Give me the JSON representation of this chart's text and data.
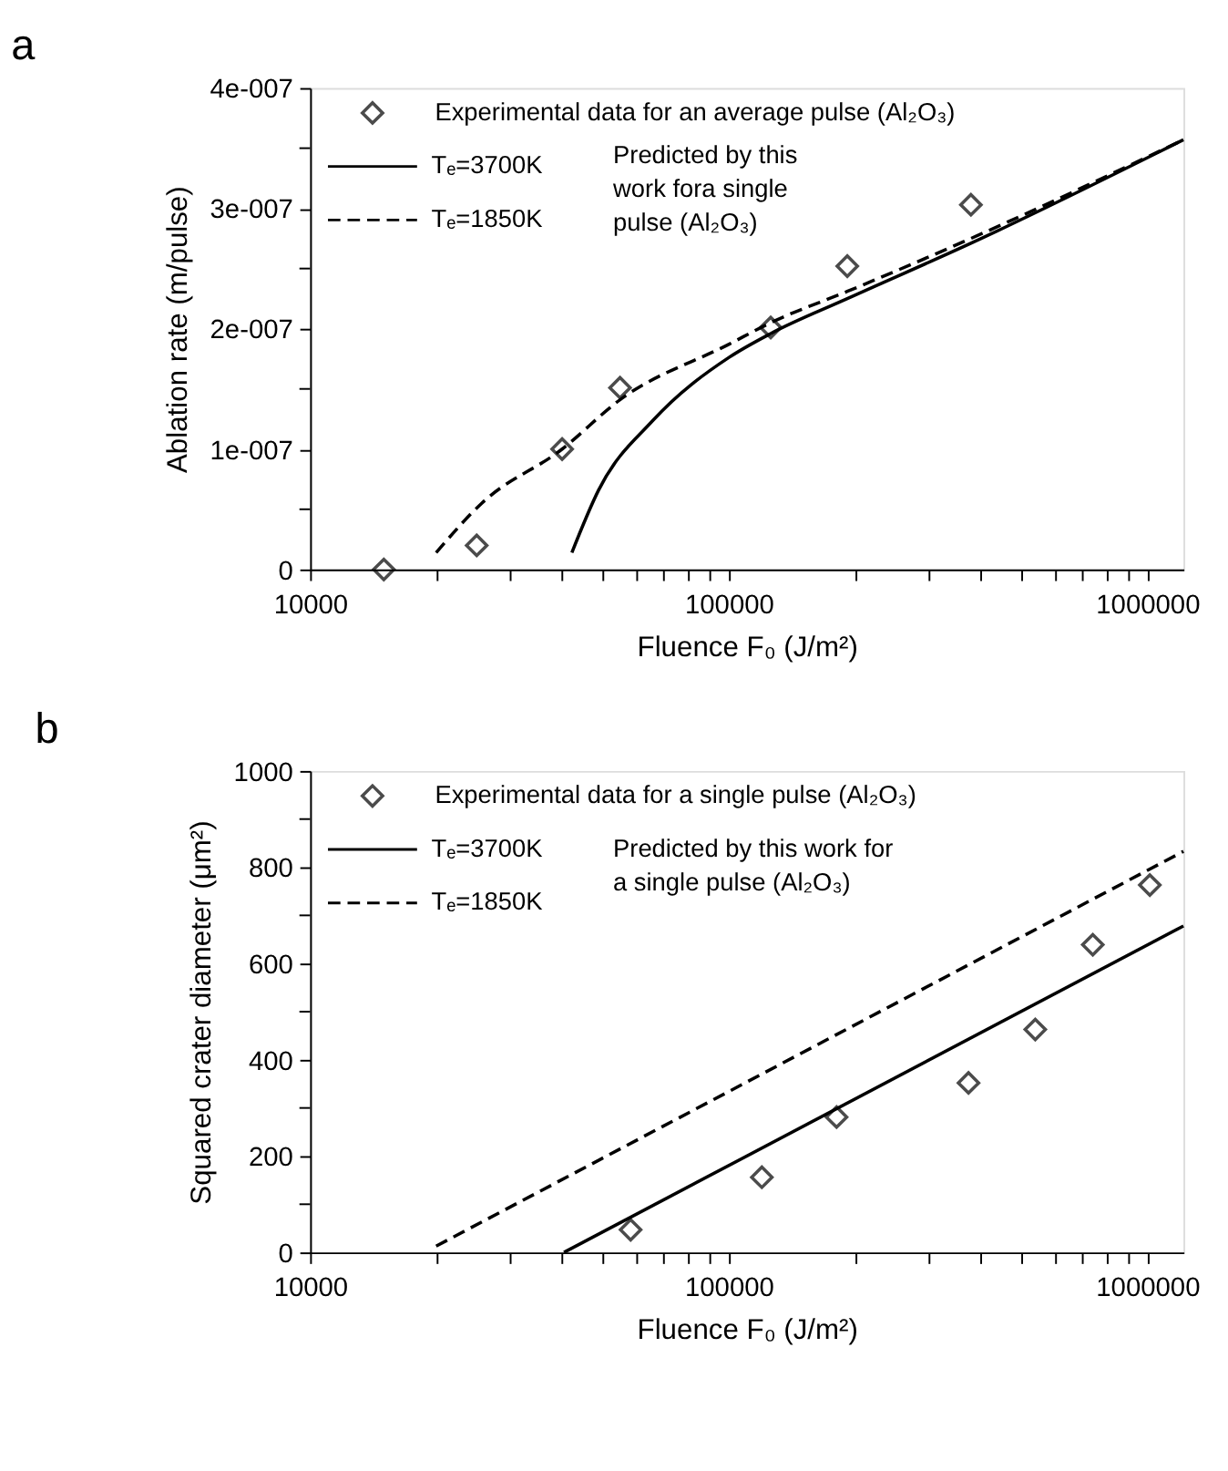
{
  "chart_data": [
    {
      "type": "line",
      "title": "a",
      "xlabel": "Fluence F₀ (J/m²)",
      "ylabel": "Ablation rate (m/pulse)",
      "log": "x",
      "grid": false,
      "legend": "top left",
      "xlim": [
        10000,
        1220000
      ],
      "ylim": [
        0,
        4e-07
      ],
      "xticks": [
        10000,
        {
          "value": 20000,
          "label": null
        },
        {
          "value": 30000,
          "label": null
        },
        {
          "value": 40000,
          "label": null
        },
        {
          "value": 50000,
          "label": null
        },
        {
          "value": 60000,
          "label": null
        },
        {
          "value": 70000,
          "label": null
        },
        {
          "value": 80000,
          "label": null
        },
        {
          "value": 90000,
          "label": null
        },
        100000,
        {
          "value": 200000,
          "label": null
        },
        {
          "value": 300000,
          "label": null
        },
        {
          "value": 400000,
          "label": null
        },
        {
          "value": 500000,
          "label": null
        },
        {
          "value": 600000,
          "label": null
        },
        {
          "value": 700000,
          "label": null
        },
        {
          "value": 800000,
          "label": null
        },
        {
          "value": 900000,
          "label": null
        },
        1000000
      ],
      "yticks": [
        0,
        {
          "value": 5e-08,
          "label": null
        },
        {
          "value": 1e-07,
          "label": "1e-007"
        },
        {
          "value": 1.5e-07,
          "label": null
        },
        {
          "value": 2e-07,
          "label": "2e-007"
        },
        {
          "value": 2.5e-07,
          "label": null
        },
        {
          "value": 3e-07,
          "label": "3e-007"
        },
        {
          "value": 3.5e-07,
          "label": null
        },
        {
          "value": 4e-07,
          "label": "4e-007"
        }
      ],
      "annotations": [
        "Predicted by this work fora single pulse (Al₂O₃)"
      ],
      "series": [
        {
          "name": "Experimental data for an average pulse (Al₂O₃)",
          "type": "scatter",
          "marker": "diamond",
          "color": "#000000",
          "x": [
            15000,
            25000,
            40000,
            55000,
            126000,
            192000,
            379000
          ],
          "values": [
            0,
            2e-08,
            1e-07,
            1.51e-07,
            2.01e-07,
            2.52e-07,
            3.03e-07
          ]
        },
        {
          "name": "Tₑ=3700K",
          "type": "line",
          "line_style": "solid",
          "color": "#000000",
          "x": [
            42200,
            48900,
            66000,
            100000,
            126000,
            192000,
            379000,
            1220000
          ],
          "values": [
            1.4e-08,
            6.6e-08,
            1.24e-07,
            1.76e-07,
            1.96e-07,
            2.25e-07,
            2.71e-07,
            3.57e-07
          ]
        },
        {
          "name": "Tₑ=1850K",
          "type": "line",
          "line_style": "dashed",
          "color": "#000000",
          "x": [
            20000,
            25700,
            40000,
            55000,
            100000,
            126000,
            192000,
            379000,
            1220000
          ],
          "values": [
            1.4e-08,
            5.5e-08,
            1e-07,
            1.41e-07,
            1.87e-07,
            2.05e-07,
            2.31e-07,
            2.75e-07,
            3.57e-07
          ]
        }
      ]
    },
    {
      "type": "line",
      "title": "b",
      "xlabel": "Fluence F₀ (J/m²)",
      "ylabel": "Squared crater diameter (μm²)",
      "log": "x",
      "grid": false,
      "legend": "top left",
      "xlim": [
        10000,
        1220000
      ],
      "ylim": [
        0,
        1000
      ],
      "xticks": [
        10000,
        {
          "value": 20000,
          "label": null
        },
        {
          "value": 30000,
          "label": null
        },
        {
          "value": 40000,
          "label": null
        },
        {
          "value": 50000,
          "label": null
        },
        {
          "value": 60000,
          "label": null
        },
        {
          "value": 70000,
          "label": null
        },
        {
          "value": 80000,
          "label": null
        },
        {
          "value": 90000,
          "label": null
        },
        100000,
        {
          "value": 200000,
          "label": null
        },
        {
          "value": 300000,
          "label": null
        },
        {
          "value": 400000,
          "label": null
        },
        {
          "value": 500000,
          "label": null
        },
        {
          "value": 600000,
          "label": null
        },
        {
          "value": 700000,
          "label": null
        },
        {
          "value": 800000,
          "label": null
        },
        {
          "value": 900000,
          "label": null
        },
        1000000
      ],
      "yticks": [
        0,
        {
          "value": 100,
          "label": null
        },
        200,
        {
          "value": 300,
          "label": null
        },
        400,
        {
          "value": 500,
          "label": null
        },
        600,
        {
          "value": 700,
          "label": null
        },
        800,
        {
          "value": 900,
          "label": null
        },
        1000
      ],
      "annotations": [
        "Predicted by this work for a single pulse (Al₂O₃)"
      ],
      "series": [
        {
          "name": "Experimental data for a single pulse (Al₂O₃)",
          "type": "scatter",
          "marker": "diamond",
          "color": "#000000",
          "x": [
            58300,
            120000,
            181000,
            374000,
            540000,
            741000,
            1014000
          ],
          "values": [
            47,
            156,
            281,
            352,
            463,
            639,
            763
          ]
        },
        {
          "name": "Tₑ=3700K",
          "type": "line",
          "line_style": "solid",
          "color": "#000000",
          "x": [
            40400,
            1220000
          ],
          "values": [
            0,
            678
          ]
        },
        {
          "name": "Tₑ=1850K",
          "type": "line",
          "line_style": "dashed",
          "color": "#000000",
          "x": [
            20000,
            1220000
          ],
          "values": [
            13,
            833
          ]
        }
      ]
    }
  ]
}
